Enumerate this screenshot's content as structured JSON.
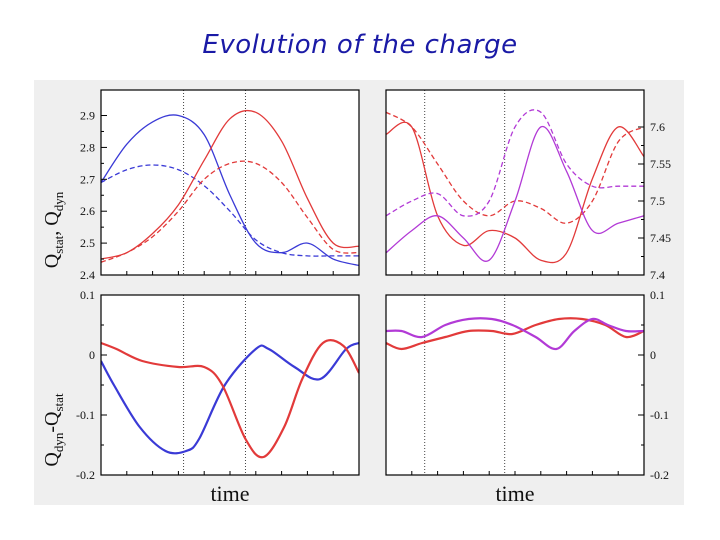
{
  "slide": {
    "title": "Evolution of the charge"
  },
  "colors": {
    "blue": "#3a3ad6",
    "red": "#e23a3a",
    "purple": "#b23ad6",
    "panel_bg": "#ffffff",
    "figure_bg": "#efefef"
  },
  "chart_data": [
    {
      "type": "line",
      "ylabel": "Q_stat, Q_dyn",
      "xlabel": "",
      "xlim": [
        0,
        10
      ],
      "ylim": [
        2.4,
        2.98
      ],
      "yticks": [
        "2.4",
        "2.5",
        "2.6",
        "2.7",
        "2.8",
        "2.9"
      ],
      "tick_side": "left",
      "vlines": [
        3.2,
        5.6
      ],
      "series": [
        {
          "color": "blue",
          "dash": false,
          "x": [
            0,
            1,
            2,
            3,
            4,
            5,
            6,
            7,
            8,
            9,
            10
          ],
          "y": [
            2.69,
            2.81,
            2.88,
            2.9,
            2.84,
            2.65,
            2.5,
            2.47,
            2.5,
            2.45,
            2.43
          ]
        },
        {
          "color": "blue",
          "dash": true,
          "x": [
            0,
            1,
            2,
            3,
            4,
            5,
            6,
            7,
            8,
            9,
            10
          ],
          "y": [
            2.69,
            2.73,
            2.745,
            2.73,
            2.68,
            2.6,
            2.51,
            2.47,
            2.46,
            2.46,
            2.46
          ]
        },
        {
          "color": "red",
          "dash": false,
          "x": [
            0,
            1,
            2,
            3,
            4,
            5,
            6,
            7,
            8,
            9,
            10
          ],
          "y": [
            2.45,
            2.47,
            2.53,
            2.62,
            2.76,
            2.89,
            2.91,
            2.82,
            2.64,
            2.5,
            2.49
          ]
        },
        {
          "color": "red",
          "dash": true,
          "x": [
            0,
            1,
            2,
            3,
            4,
            5,
            6,
            7,
            8,
            9,
            10
          ],
          "y": [
            2.44,
            2.47,
            2.52,
            2.6,
            2.7,
            2.75,
            2.75,
            2.69,
            2.58,
            2.48,
            2.47
          ]
        }
      ]
    },
    {
      "type": "line",
      "ylabel": "",
      "xlabel": "",
      "xlim": [
        0,
        10
      ],
      "ylim": [
        7.4,
        7.65
      ],
      "yticks": [
        "7.4",
        "7.45",
        "7.5",
        "7.55",
        "7.6"
      ],
      "tick_side": "right",
      "vlines": [
        1.5,
        4.6
      ],
      "series": [
        {
          "color": "red",
          "dash": true,
          "x": [
            0,
            1,
            2,
            3,
            4,
            5,
            6,
            7,
            8,
            9,
            10
          ],
          "y": [
            7.62,
            7.6,
            7.55,
            7.5,
            7.48,
            7.5,
            7.49,
            7.47,
            7.5,
            7.58,
            7.6
          ]
        },
        {
          "color": "red",
          "dash": false,
          "x": [
            0,
            1,
            2,
            3,
            4,
            5,
            6,
            7,
            8,
            9,
            10
          ],
          "y": [
            7.59,
            7.6,
            7.48,
            7.44,
            7.46,
            7.45,
            7.42,
            7.43,
            7.53,
            7.6,
            7.56
          ]
        },
        {
          "color": "purple",
          "dash": true,
          "x": [
            0,
            1,
            2,
            3,
            4,
            5,
            6,
            7,
            8,
            9,
            10
          ],
          "y": [
            7.48,
            7.5,
            7.51,
            7.48,
            7.5,
            7.6,
            7.62,
            7.55,
            7.52,
            7.52,
            7.52
          ]
        },
        {
          "color": "purple",
          "dash": false,
          "x": [
            0,
            1,
            2,
            3,
            4,
            5,
            6,
            7,
            8,
            9,
            10
          ],
          "y": [
            7.43,
            7.46,
            7.48,
            7.45,
            7.42,
            7.5,
            7.6,
            7.54,
            7.46,
            7.47,
            7.48
          ]
        }
      ]
    },
    {
      "type": "line",
      "ylabel": "Q_dyn-Q_stat",
      "xlabel": "time",
      "xlim": [
        0,
        10
      ],
      "ylim": [
        -0.2,
        0.1
      ],
      "yticks": [
        "-0.2",
        "-0.1",
        "0",
        "0.1"
      ],
      "tick_side": "left",
      "vlines": [
        3.2,
        5.6
      ],
      "series": [
        {
          "color": "blue",
          "dash": false,
          "x": [
            0,
            0.5,
            1.5,
            2.5,
            3.3,
            3.8,
            4.8,
            6,
            6.5,
            7.5,
            8.5,
            9.5,
            10
          ],
          "y": [
            -0.01,
            -0.05,
            -0.12,
            -0.16,
            -0.16,
            -0.14,
            -0.05,
            0.01,
            0.01,
            -0.02,
            -0.04,
            0.01,
            0.02
          ]
        },
        {
          "color": "red",
          "dash": false,
          "x": [
            0,
            0.6,
            1.6,
            3,
            4,
            4.7,
            5.6,
            6.3,
            7.1,
            7.8,
            8.6,
            9.4,
            10
          ],
          "y": [
            0.02,
            0.01,
            -0.01,
            -0.02,
            -0.02,
            -0.05,
            -0.14,
            -0.17,
            -0.12,
            -0.04,
            0.02,
            0.015,
            -0.03
          ]
        }
      ]
    },
    {
      "type": "line",
      "ylabel": "",
      "xlabel": "time",
      "xlim": [
        0,
        10
      ],
      "ylim": [
        -0.2,
        0.1
      ],
      "yticks": [
        "-0.2",
        "-0.1",
        "0",
        "0.1"
      ],
      "tick_side": "right",
      "vlines": [
        1.5,
        4.6
      ],
      "series": [
        {
          "color": "red",
          "dash": false,
          "x": [
            0,
            0.6,
            1.4,
            2.3,
            3.2,
            4.1,
            4.9,
            5.8,
            6.7,
            7.6,
            8.5,
            9.3,
            10
          ],
          "y": [
            0.02,
            0.01,
            0.02,
            0.03,
            0.04,
            0.04,
            0.035,
            0.05,
            0.06,
            0.06,
            0.05,
            0.03,
            0.04
          ]
        },
        {
          "color": "purple",
          "dash": false,
          "x": [
            0,
            0.6,
            1.4,
            2.3,
            3.2,
            4.1,
            4.9,
            5.8,
            6.6,
            7.3,
            8,
            8.6,
            9.3,
            10
          ],
          "y": [
            0.04,
            0.04,
            0.03,
            0.05,
            0.06,
            0.06,
            0.05,
            0.03,
            0.01,
            0.04,
            0.06,
            0.05,
            0.04,
            0.04
          ]
        }
      ]
    }
  ]
}
